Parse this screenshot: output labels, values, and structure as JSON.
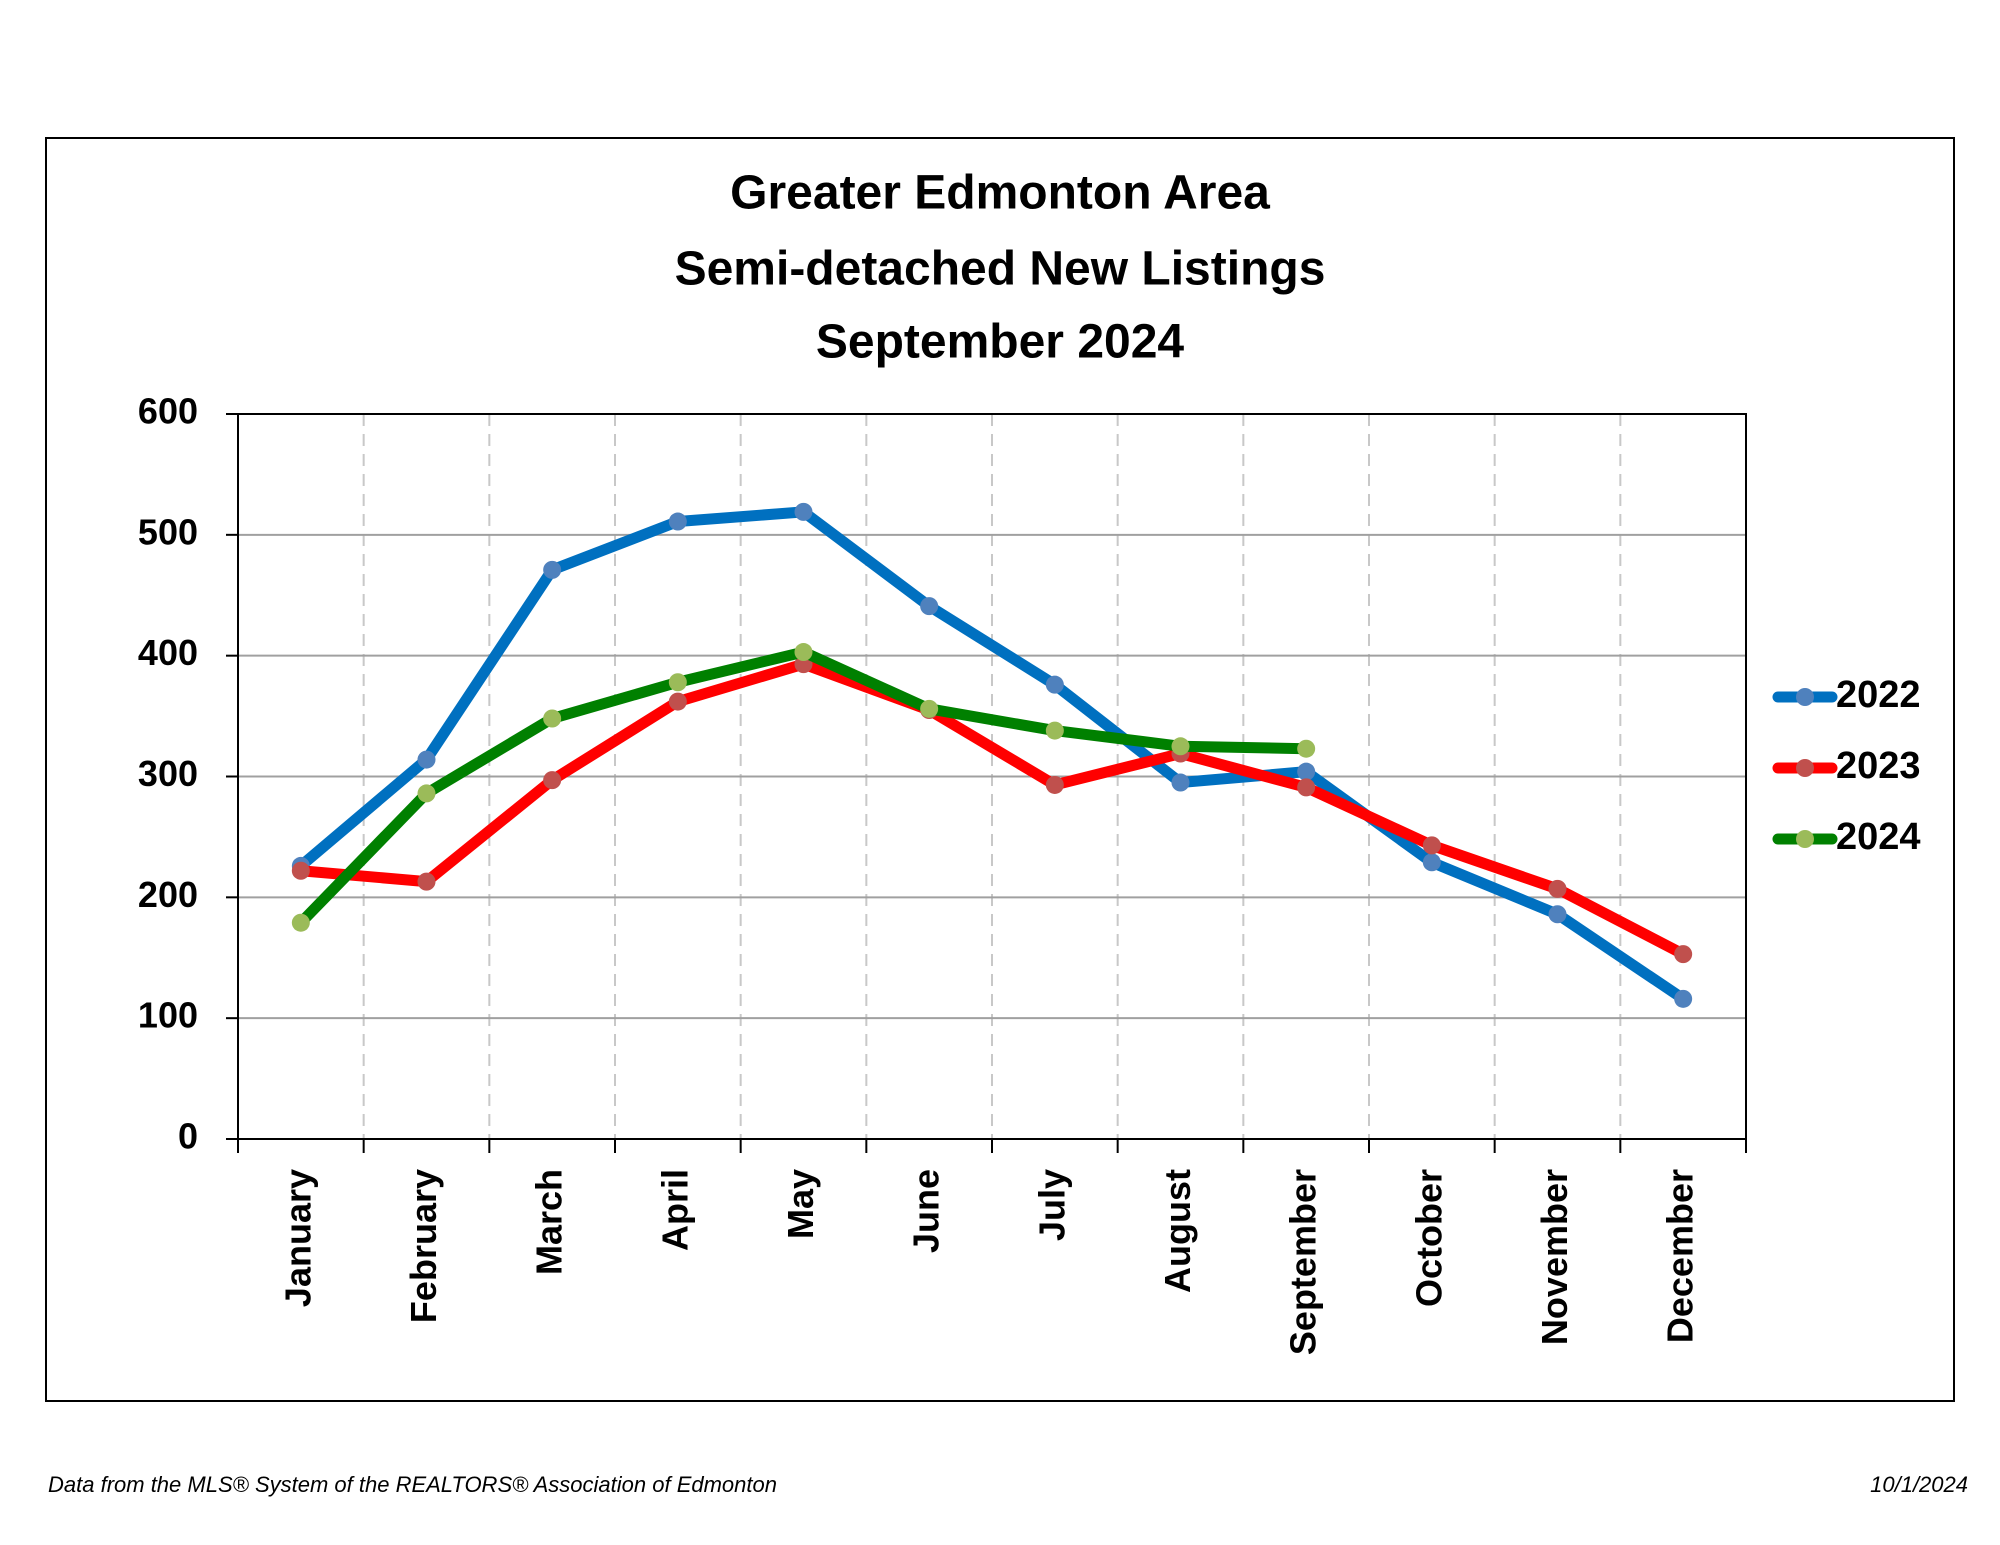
{
  "chart_data": {
    "type": "line",
    "title_lines": [
      "Greater Edmonton Area",
      "Semi-detached New Listings",
      "September 2024"
    ],
    "categories": [
      "January",
      "February",
      "March",
      "April",
      "May",
      "June",
      "July",
      "August",
      "September",
      "October",
      "November",
      "December"
    ],
    "series": [
      {
        "name": "2022",
        "color": "#0070c0",
        "marker_color": "#4f81bd",
        "values": [
          226,
          314,
          471,
          511,
          519,
          441,
          376,
          295,
          304,
          229,
          186,
          116
        ]
      },
      {
        "name": "2023",
        "color": "#ff0000",
        "marker_color": "#c0504d",
        "values": [
          222,
          213,
          297,
          362,
          393,
          355,
          293,
          319,
          291,
          243,
          207,
          153
        ]
      },
      {
        "name": "2024",
        "color": "#008000",
        "marker_color": "#9bbb59",
        "values": [
          179,
          286,
          348,
          378,
          403,
          356,
          338,
          325,
          323,
          null,
          null,
          null
        ]
      }
    ],
    "ylim": [
      0,
      600
    ],
    "yticks": [
      0,
      100,
      200,
      300,
      400,
      500,
      600
    ],
    "grid": true,
    "legend": "right",
    "source": "Data from the MLS® System of the REALTORS® Association of Edmonton",
    "date": "10/1/2024"
  }
}
